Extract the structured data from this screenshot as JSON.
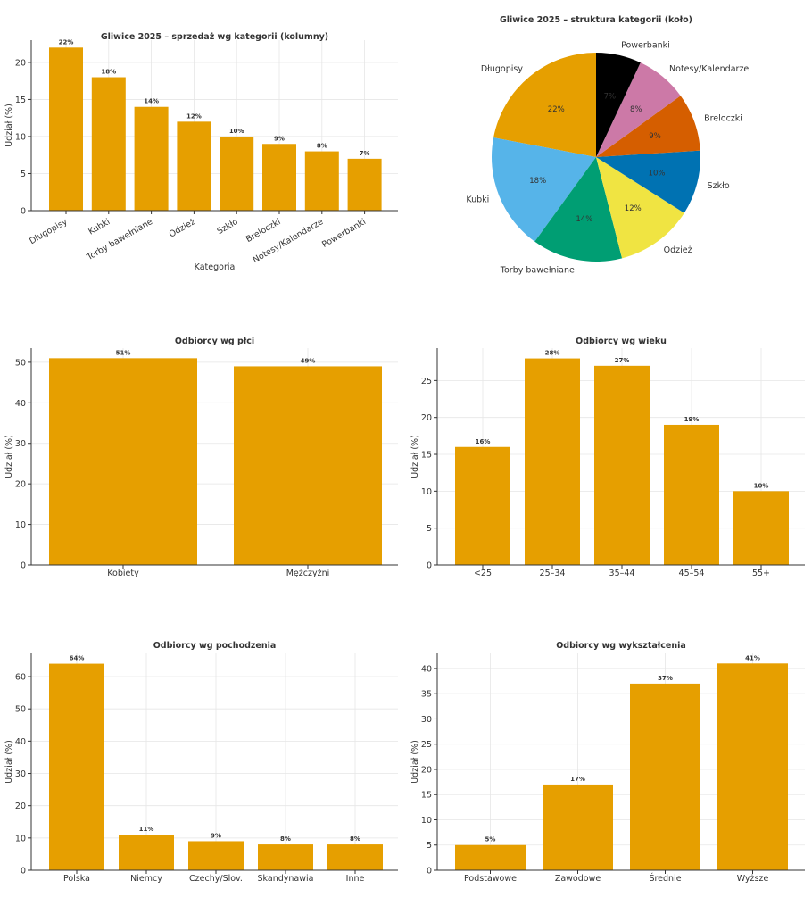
{
  "chart_data": [
    {
      "id": "cat_bar",
      "type": "bar",
      "title": "Gliwice 2025 – sprzedaż wg kategorii (kolumny)",
      "xlabel": "Kategoria",
      "ylabel": "Udział (%)",
      "categories": [
        "Długopisy",
        "Kubki",
        "Torby bawełniane",
        "Odzież",
        "Szkło",
        "Breloczki",
        "Notesy/Kalendarze",
        "Powerbanki"
      ],
      "values": [
        22,
        18,
        14,
        12,
        10,
        9,
        8,
        7
      ],
      "value_labels": [
        "22%",
        "18%",
        "14%",
        "12%",
        "10%",
        "9%",
        "8%",
        "7%"
      ],
      "ylim": [
        0,
        23
      ],
      "yticks": [
        0,
        5,
        10,
        15,
        20
      ],
      "grid": true
    },
    {
      "id": "cat_pie",
      "type": "pie",
      "title": "Gliwice 2025 – struktura kategorii (koło)",
      "categories": [
        "Długopisy",
        "Kubki",
        "Torby bawełniane",
        "Odzież",
        "Szkło",
        "Breloczki",
        "Notesy/Kalendarze",
        "Powerbanki"
      ],
      "values": [
        22,
        18,
        14,
        12,
        10,
        9,
        8,
        7
      ],
      "value_labels": [
        "22%",
        "18%",
        "14%",
        "12%",
        "10%",
        "9%",
        "8%",
        "7%"
      ],
      "colors": [
        "#E69F00",
        "#56B4E9",
        "#009E73",
        "#F0E442",
        "#0072B2",
        "#D55E00",
        "#CC79A7",
        "#000000"
      ]
    },
    {
      "id": "gender",
      "type": "bar",
      "title": "Odbiorcy wg płci",
      "xlabel": "",
      "ylabel": "Udział (%)",
      "categories": [
        "Kobiety",
        "Mężczyźni"
      ],
      "values": [
        51,
        49
      ],
      "value_labels": [
        "51%",
        "49%"
      ],
      "ylim": [
        0,
        53.5
      ],
      "yticks": [
        0,
        10,
        20,
        30,
        40,
        50
      ],
      "grid": true
    },
    {
      "id": "age",
      "type": "bar",
      "title": "Odbiorcy wg wieku",
      "xlabel": "",
      "ylabel": "Udział (%)",
      "categories": [
        "<25",
        "25–34",
        "35–44",
        "45–54",
        "55+"
      ],
      "values": [
        16,
        28,
        27,
        19,
        10
      ],
      "value_labels": [
        "16%",
        "28%",
        "27%",
        "19%",
        "10%"
      ],
      "ylim": [
        0,
        29.4
      ],
      "yticks": [
        0,
        5,
        10,
        15,
        20,
        25
      ],
      "grid": true
    },
    {
      "id": "origin",
      "type": "bar",
      "title": "Odbiorcy wg pochodzenia",
      "xlabel": "",
      "ylabel": "Udział (%)",
      "categories": [
        "Polska",
        "Niemcy",
        "Czechy/Slov.",
        "Skandynawia",
        "Inne"
      ],
      "values": [
        64,
        11,
        9,
        8,
        8
      ],
      "value_labels": [
        "64%",
        "11%",
        "9%",
        "8%",
        "8%"
      ],
      "ylim": [
        0,
        67.2
      ],
      "yticks": [
        0,
        10,
        20,
        30,
        40,
        50,
        60
      ],
      "grid": true
    },
    {
      "id": "education",
      "type": "bar",
      "title": "Odbiorcy wg wykształcenia",
      "xlabel": "",
      "ylabel": "Udział (%)",
      "categories": [
        "Podstawowe",
        "Zawodowe",
        "Średnie",
        "Wyższe"
      ],
      "values": [
        5,
        17,
        37,
        41
      ],
      "value_labels": [
        "5%",
        "17%",
        "37%",
        "41%"
      ],
      "ylim": [
        0,
        43
      ],
      "yticks": [
        0,
        5,
        10,
        15,
        20,
        25,
        30,
        35,
        40
      ],
      "grid": true
    }
  ],
  "colors": {
    "bar": "#E69F00"
  }
}
